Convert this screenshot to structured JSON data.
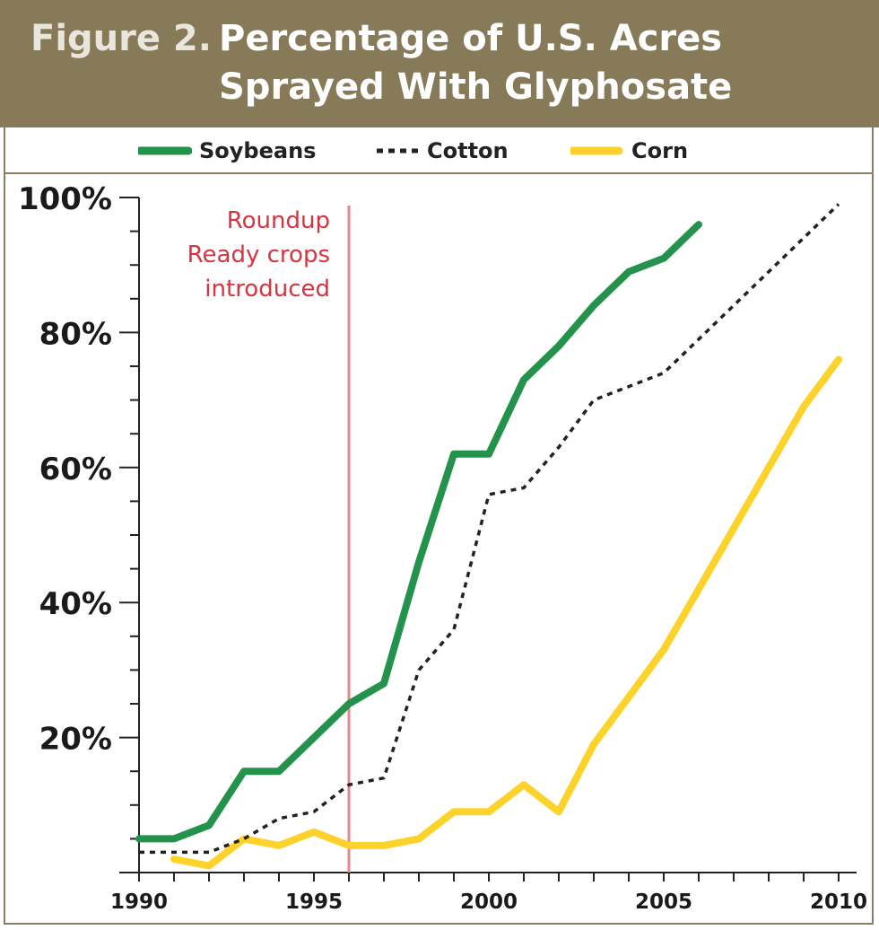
{
  "figure": {
    "title_prefix": "Figure 2.",
    "title_line1": "Percentage of U.S. Acres",
    "title_line2": "Sprayed With Glyphosate"
  },
  "legend": {
    "soybeans": "Soybeans",
    "cotton": "Cotton",
    "corn": "Corn"
  },
  "annotation": {
    "line1": "Roundup",
    "line2": "Ready crops",
    "line3": "introduced",
    "x": 1996,
    "color": "#e8868d"
  },
  "colors": {
    "header": "#867a58",
    "soybeans": "#23924a",
    "cotton": "#222222",
    "corn": "#fcd22b",
    "annotation_text": "#d4353f"
  },
  "chart_data": {
    "type": "line",
    "xlim": [
      1990,
      2010
    ],
    "ylim": [
      0,
      100
    ],
    "x_ticks": [
      1990,
      1995,
      2000,
      2005,
      2010
    ],
    "y_ticks": [
      20,
      40,
      60,
      80,
      100
    ],
    "y_tick_labels": [
      "20%",
      "40%",
      "60%",
      "80%",
      "100%"
    ],
    "grid": false,
    "legend_position": "top",
    "series": [
      {
        "name": "Soybeans",
        "style": "solid",
        "x": [
          1990,
          1991,
          1992,
          1993,
          1994,
          1995,
          1996,
          1997,
          1998,
          1999,
          2000,
          2001,
          2002,
          2003,
          2004,
          2005,
          2006
        ],
        "y": [
          5,
          5,
          7,
          15,
          15,
          20,
          25,
          28,
          46,
          62,
          62,
          73,
          78,
          84,
          89,
          91,
          96
        ]
      },
      {
        "name": "Cotton",
        "style": "dashed",
        "x": [
          1990,
          1991,
          1992,
          1993,
          1994,
          1995,
          1996,
          1997,
          1998,
          1999,
          2000,
          2001,
          2002,
          2003,
          2004,
          2005,
          2006,
          2007,
          2008,
          2009,
          2010
        ],
        "y": [
          3,
          3,
          3,
          5,
          8,
          9,
          13,
          14,
          30,
          36,
          56,
          57,
          63,
          70,
          72,
          74,
          79,
          84,
          89,
          94,
          99
        ]
      },
      {
        "name": "Corn",
        "style": "solid",
        "x": [
          1991,
          1992,
          1993,
          1994,
          1995,
          1996,
          1997,
          1998,
          1999,
          2000,
          2001,
          2002,
          2003,
          2004,
          2005,
          2006,
          2007,
          2008,
          2009,
          2010
        ],
        "y": [
          2,
          1,
          5,
          4,
          6,
          4,
          4,
          5,
          9,
          9,
          13,
          9,
          19,
          26,
          33,
          42,
          51,
          60,
          69,
          76
        ]
      }
    ]
  }
}
